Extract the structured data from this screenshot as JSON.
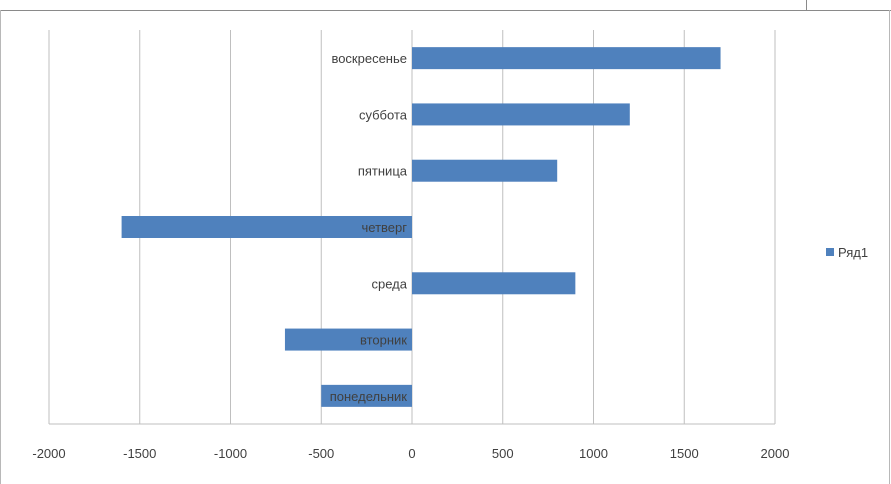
{
  "chart_data": {
    "type": "bar",
    "orientation": "horizontal",
    "categories": [
      "понедельник",
      "вторник",
      "среда",
      "четверг",
      "пятница",
      "суббота",
      "воскресенье"
    ],
    "series": [
      {
        "name": "Ряд1",
        "values": [
          -500,
          -700,
          900,
          -1600,
          800,
          1200,
          1700
        ],
        "color": "#4f81bd"
      }
    ],
    "xlim": [
      -2000,
      2000
    ],
    "xticks": [
      -2000,
      -1500,
      -1000,
      -500,
      0,
      500,
      1000,
      1500,
      2000
    ],
    "grid": true,
    "legend_position": "right"
  }
}
